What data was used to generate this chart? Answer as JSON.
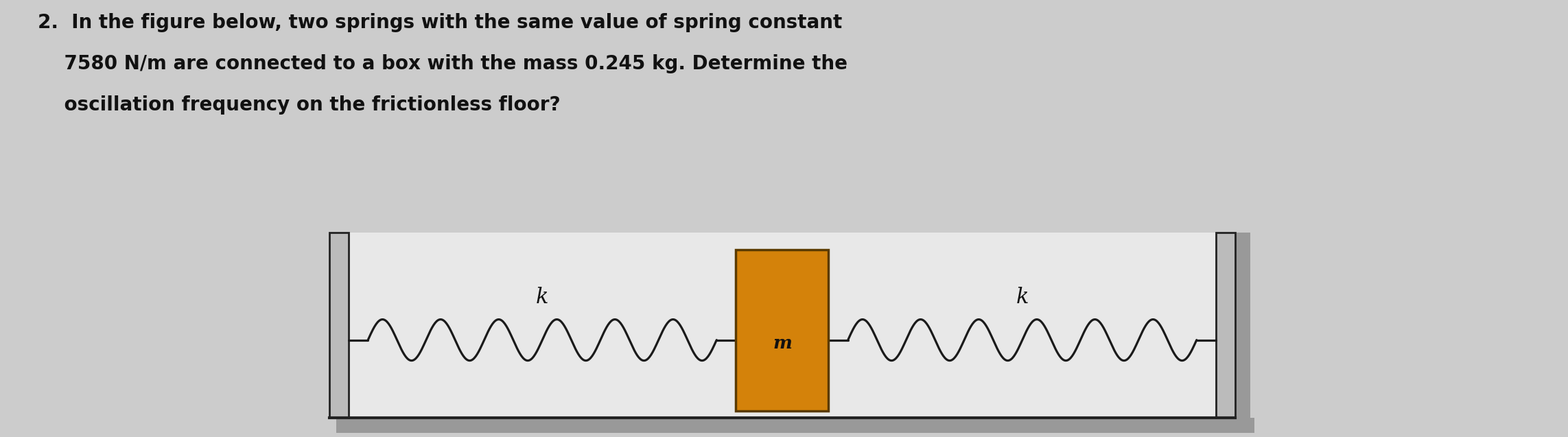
{
  "background_color": "#cccccc",
  "text_line1": "2.  In the figure below, two springs with the same value of spring constant",
  "text_line2": "    7580 N/m are connected to a box with the mass 0.245 kg. Determine the",
  "text_line3": "    oscillation frequency on the frictionless floor?",
  "text_fontsize": 20,
  "text_color": "#111111",
  "text_bold": true,
  "diagram": {
    "outer_box_border": "#222222",
    "shadow_color": "#999999",
    "inner_bg_color": "#e8e8e8",
    "mass_color": "#d4820a",
    "mass_border": "#5a3a00",
    "mass_label": "m",
    "spring_label": "k",
    "spring_coil_color": "#1a1a1a",
    "label_color": "#111111",
    "wall_color": "#bbbbbb",
    "wall_border": "#222222"
  }
}
